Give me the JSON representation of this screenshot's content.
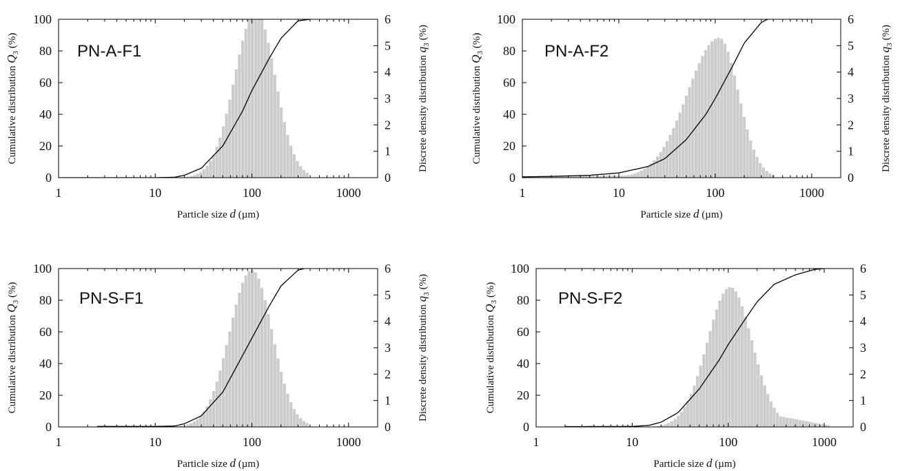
{
  "chart_data": [
    {
      "type": "bar",
      "annotation": "PN-A-F1",
      "xlabel_pre": "Particle size ",
      "xlabel_var": "d",
      "xlabel_post": " (µm)",
      "ylabel_pre": "Cumulative distribution ",
      "ylabel_var": "Q",
      "ylabel_sub": "3",
      "ylabel_post": " (%)",
      "y2label_pre": "Discrete density distribution ",
      "y2label_var": "q",
      "y2label_sub": "3",
      "y2label_post": " (%)",
      "xscale": "log",
      "xlim": [
        1,
        2000
      ],
      "ylim": [
        0,
        100
      ],
      "y2lim": [
        0,
        6
      ],
      "xticks": [
        1,
        10,
        100,
        1000
      ],
      "xtick_labels": [
        "1",
        "10",
        "100",
        "1000"
      ],
      "yticks": [
        0,
        20,
        40,
        60,
        80,
        100
      ],
      "ytick_labels": [
        "0",
        "20",
        "40",
        "60",
        "80",
        "100"
      ],
      "y2ticks": [
        0,
        1,
        2,
        3,
        4,
        5,
        6
      ],
      "y2tick_labels": [
        "0",
        "1",
        "2",
        "3",
        "4",
        "5",
        "6"
      ],
      "right_axis_shown": true,
      "bar_color": "#cccccc",
      "line_color": "#000000",
      "grid": false,
      "density": {
        "d_min": 16,
        "d_max": 400,
        "peak_d": 110,
        "peak": 6.3,
        "sigma_left": 0.22,
        "sigma_right": 0.2
      },
      "cumulative_q3": {
        "d": [
          1,
          10,
          16,
          20,
          30,
          50,
          80,
          100,
          150,
          200,
          300,
          400
        ],
        "values": [
          0,
          0,
          0.3,
          1.5,
          6,
          20,
          42,
          55,
          75,
          88,
          99,
          100
        ]
      }
    },
    {
      "type": "bar",
      "annotation": "PN-A-F2",
      "xlabel_pre": "Particle size ",
      "xlabel_var": "d",
      "xlabel_post": " (µm)",
      "ylabel_pre": "Cumulative distribution ",
      "ylabel_var": "Q",
      "ylabel_sub": "3",
      "ylabel_post": " (%)",
      "y2label_pre": "Discrete density distribution ",
      "y2label_var": "q",
      "y2label_sub": "3",
      "y2label_post": " (%)",
      "xscale": "log",
      "xlim": [
        1,
        2000
      ],
      "ylim": [
        0,
        100
      ],
      "y2lim": [
        0,
        6
      ],
      "xticks": [
        1,
        10,
        100,
        1000
      ],
      "xtick_labels": [
        "1",
        "10",
        "100",
        "1000"
      ],
      "yticks": [
        0,
        20,
        40,
        60,
        80,
        100
      ],
      "ytick_labels": [
        "0",
        "20",
        "40",
        "60",
        "80",
        "100"
      ],
      "y2ticks": [
        0,
        1,
        2,
        3,
        4,
        5,
        6
      ],
      "y2tick_labels": [
        "0",
        "1",
        "2",
        "3",
        "4",
        "5",
        "6"
      ],
      "right_axis_shown": true,
      "bar_color": "#cccccc",
      "line_color": "#000000",
      "grid": false,
      "density": {
        "d_min": 1,
        "d_max": 400,
        "peak_d": 110,
        "peak": 5.3,
        "sigma_left": 0.33,
        "sigma_right": 0.2,
        "tail_floor": 0.12
      },
      "cumulative_q3": {
        "d": [
          1,
          2,
          5,
          10,
          20,
          30,
          50,
          80,
          100,
          150,
          200,
          300,
          350
        ],
        "values": [
          0.5,
          0.8,
          1.5,
          3,
          7,
          12,
          24,
          40,
          50,
          70,
          85,
          98,
          100
        ]
      }
    },
    {
      "type": "bar",
      "annotation": "PN-S-F1",
      "xlabel_pre": "Particle size ",
      "xlabel_var": "d",
      "xlabel_post": " (µm)",
      "ylabel_pre": "Cumulative distribution ",
      "ylabel_var": "Q",
      "ylabel_sub": "3",
      "ylabel_post": " (%)",
      "y2label_pre": "Discrete density distribution ",
      "y2label_var": "q",
      "y2label_sub": "3",
      "y2label_post": " (%)",
      "xscale": "log",
      "xlim": [
        1,
        2000
      ],
      "ylim": [
        0,
        100
      ],
      "y2lim": [
        0,
        6
      ],
      "xticks": [
        1,
        10,
        100,
        1000
      ],
      "xtick_labels": [
        "1",
        "10",
        "100",
        "1000"
      ],
      "yticks": [
        0,
        20,
        40,
        60,
        80,
        100
      ],
      "ytick_labels": [
        "0",
        "20",
        "40",
        "60",
        "80",
        "100"
      ],
      "y2ticks": [
        0,
        1,
        2,
        3,
        4,
        5,
        6
      ],
      "y2tick_labels": [
        "0",
        "1",
        "2",
        "3",
        "4",
        "5",
        "6"
      ],
      "right_axis_shown": true,
      "bar_color": "#cccccc",
      "line_color": "#000000",
      "grid": false,
      "density": {
        "d_min": 16,
        "d_max": 400,
        "peak_d": 100,
        "peak": 5.95,
        "sigma_left": 0.23,
        "sigma_right": 0.21
      },
      "cumulative_q3": {
        "d": [
          2.5,
          10,
          16,
          20,
          30,
          50,
          80,
          100,
          150,
          200,
          300,
          350
        ],
        "values": [
          0.3,
          0.3,
          0.6,
          2,
          7,
          22,
          45,
          56,
          76,
          89,
          99,
          100
        ]
      }
    },
    {
      "type": "bar",
      "annotation": "PN-S-F2",
      "xlabel_pre": "Particle size ",
      "xlabel_var": "d",
      "xlabel_post": " (µm)",
      "ylabel_pre": "Cumulative distribution ",
      "ylabel_var": "Q",
      "ylabel_sub": "3",
      "ylabel_post": " (%)",
      "y2label_pre": "",
      "y2label_var": "",
      "y2label_sub": "",
      "y2label_post": "",
      "xscale": "log",
      "xlim": [
        1,
        2000
      ],
      "ylim": [
        0,
        100
      ],
      "y2lim": [
        0,
        6
      ],
      "xticks": [
        1,
        10,
        100,
        1000
      ],
      "xtick_labels": [
        "1",
        "10",
        "100",
        "1000"
      ],
      "yticks": [
        0,
        20,
        40,
        60,
        80,
        100
      ],
      "ytick_labels": [
        "0",
        "20",
        "40",
        "60",
        "80",
        "100"
      ],
      "y2ticks": [
        0,
        1,
        2,
        3,
        4,
        5,
        6
      ],
      "y2tick_labels": [
        "0",
        "1",
        "2",
        "3",
        "4",
        "5",
        "6"
      ],
      "right_axis_shown": true,
      "bar_color": "#cccccc",
      "line_color": "#000000",
      "grid": false,
      "density": {
        "d_min": 14,
        "d_max": 1200,
        "peak_d": 105,
        "peak": 5.3,
        "sigma_left": 0.24,
        "sigma_right": 0.23,
        "tail_floor": 0.45,
        "tail_from": 300
      },
      "cumulative_q3": {
        "d": [
          2,
          10,
          15,
          20,
          30,
          50,
          80,
          100,
          150,
          200,
          300,
          500,
          800,
          1000
        ],
        "values": [
          0.2,
          0.3,
          1,
          3,
          9,
          24,
          42,
          52,
          68,
          79,
          90,
          96,
          99.5,
          100
        ]
      }
    }
  ]
}
